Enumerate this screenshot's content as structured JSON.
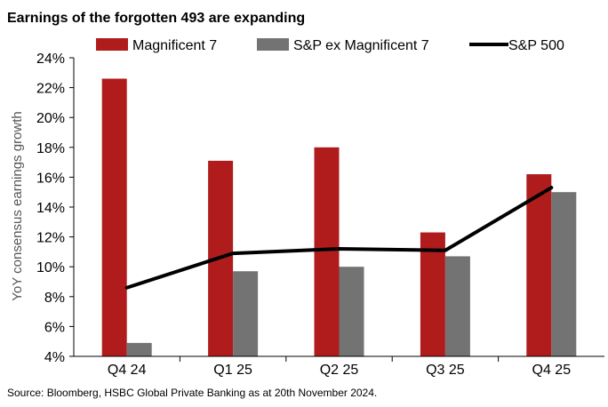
{
  "chart_data": {
    "type": "bar",
    "title": "Earnings of the forgotten 493 are expanding",
    "ylabel": "YoY consensus earnings growth",
    "xlabel": "",
    "categories": [
      "Q4 24",
      "Q1 25",
      "Q2 25",
      "Q3 25",
      "Q4 25"
    ],
    "ylim": [
      4,
      24
    ],
    "yticks": [
      4,
      6,
      8,
      10,
      12,
      14,
      16,
      18,
      20,
      22,
      24
    ],
    "ytick_suffix": "%",
    "series": [
      {
        "name": "Magnificent 7",
        "kind": "bar",
        "color": "#b01c1c",
        "values": [
          22.6,
          17.1,
          18.0,
          12.3,
          16.2
        ]
      },
      {
        "name": "S&P ex Magnificent 7",
        "kind": "bar",
        "color": "#737373",
        "values": [
          4.9,
          9.7,
          10.0,
          10.7,
          15.0
        ]
      },
      {
        "name": "S&P 500",
        "kind": "line",
        "color": "#000000",
        "values": [
          8.6,
          10.9,
          11.2,
          11.1,
          15.3
        ]
      }
    ],
    "legend_position": "top",
    "source": "Source: Bloomberg, HSBC Global Private Banking as at 20th November 2024."
  }
}
